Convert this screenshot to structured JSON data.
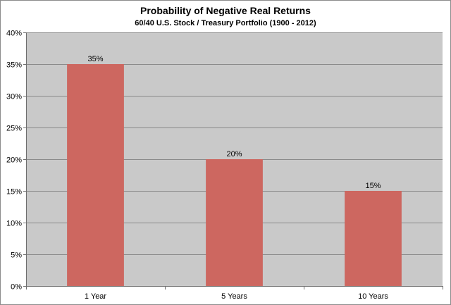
{
  "chart_data": {
    "type": "bar",
    "title": "Probability of Negative Real Returns",
    "subtitle": "60/40 U.S. Stock / Treasury Portfolio (1900 - 2012)",
    "categories": [
      "1 Year",
      "5 Years",
      "10 Years"
    ],
    "values": [
      35,
      20,
      15
    ],
    "data_labels": [
      "35%",
      "20%",
      "15%"
    ],
    "y_ticks": [
      0,
      5,
      10,
      15,
      20,
      25,
      30,
      35,
      40
    ],
    "y_tick_labels": [
      "0%",
      "5%",
      "10%",
      "15%",
      "20%",
      "25%",
      "30%",
      "35%",
      "40%"
    ],
    "ylim": [
      0,
      40
    ],
    "xlabel": "",
    "ylabel": "",
    "grid": true,
    "bar_color": "#cd6760",
    "plot_background": "#c9c9c9"
  }
}
